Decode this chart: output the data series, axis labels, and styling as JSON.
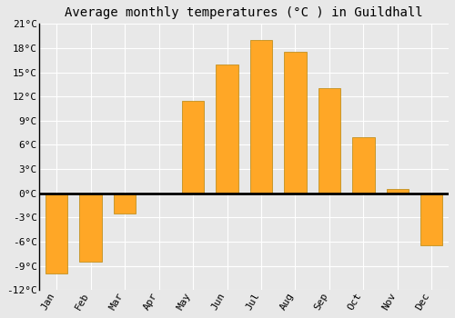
{
  "months": [
    "Jan",
    "Feb",
    "Mar",
    "Apr",
    "May",
    "Jun",
    "Jul",
    "Aug",
    "Sep",
    "Oct",
    "Nov",
    "Dec"
  ],
  "temperatures": [
    -10.0,
    -8.5,
    -2.5,
    0.0,
    11.5,
    16.0,
    19.0,
    17.5,
    13.0,
    7.0,
    0.5,
    -6.5
  ],
  "bar_color": "#FFA726",
  "bar_edge_color": "#B8860B",
  "title": "Average monthly temperatures (°C ) in Guildhall",
  "ylim": [
    -12,
    21
  ],
  "yticks": [
    -12,
    -9,
    -6,
    -3,
    0,
    3,
    6,
    9,
    12,
    15,
    18,
    21
  ],
  "ytick_labels": [
    "-12°C",
    "-9°C",
    "-6°C",
    "-3°C",
    "0°C",
    "3°C",
    "6°C",
    "9°C",
    "12°C",
    "15°C",
    "18°C",
    "21°C"
  ],
  "background_color": "#e8e8e8",
  "grid_color": "#ffffff",
  "title_fontsize": 10,
  "tick_fontsize": 8,
  "bar_width": 0.65
}
